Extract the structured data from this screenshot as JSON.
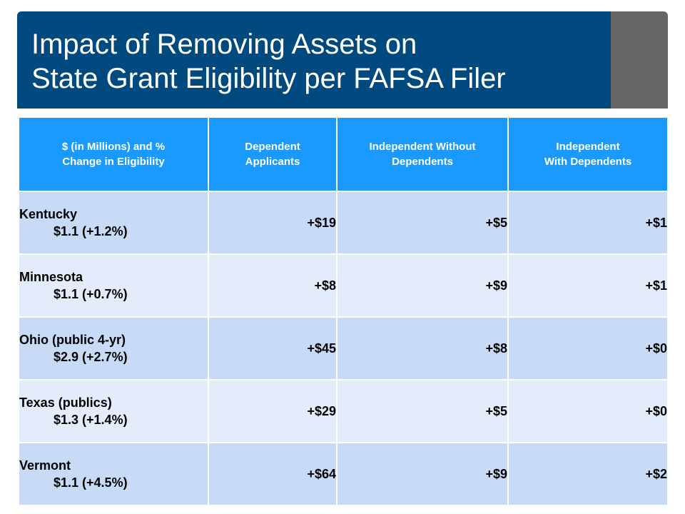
{
  "header": {
    "title_line1": "Impact of Removing Assets on",
    "title_line2": "State Grant Eligibility per FAFSA Filer"
  },
  "table": {
    "columns": [
      {
        "line1": "$ (in Millions) and %",
        "line2": "Change in Eligibility"
      },
      {
        "line1": "Dependent",
        "line2": "Applicants"
      },
      {
        "line1": "Independent Without",
        "line2": "Dependents"
      },
      {
        "line1": "Independent",
        "line2": "With Dependents"
      }
    ],
    "rows": [
      {
        "state": "Kentucky",
        "value": "$1.1 (+1.2%)",
        "dependent": "+$19",
        "indep_without": "+$5",
        "indep_with": "+$1"
      },
      {
        "state": "Minnesota",
        "value": "$1.1 (+0.7%)",
        "dependent": "+$8",
        "indep_without": "+$9",
        "indep_with": "+$1"
      },
      {
        "state": "Ohio (public 4-yr)",
        "value": "$2.9 (+2.7%)",
        "dependent": "+$45",
        "indep_without": "+$8",
        "indep_with": "+$0"
      },
      {
        "state": "Texas (publics)",
        "value": "$1.3 (+1.4%)",
        "dependent": "+$29",
        "indep_without": "+$5",
        "indep_with": "+$0"
      },
      {
        "state": "Vermont",
        "value": "$1.1 (+4.5%)",
        "dependent": "+$64",
        "indep_without": "+$9",
        "indep_with": "+$2"
      }
    ]
  },
  "colors": {
    "title_bar": "#004a7f",
    "title_side": "#666666",
    "header_cells": "#1a9aff",
    "row_odd": "#c7dbf7",
    "row_even": "#e3ecfa"
  }
}
